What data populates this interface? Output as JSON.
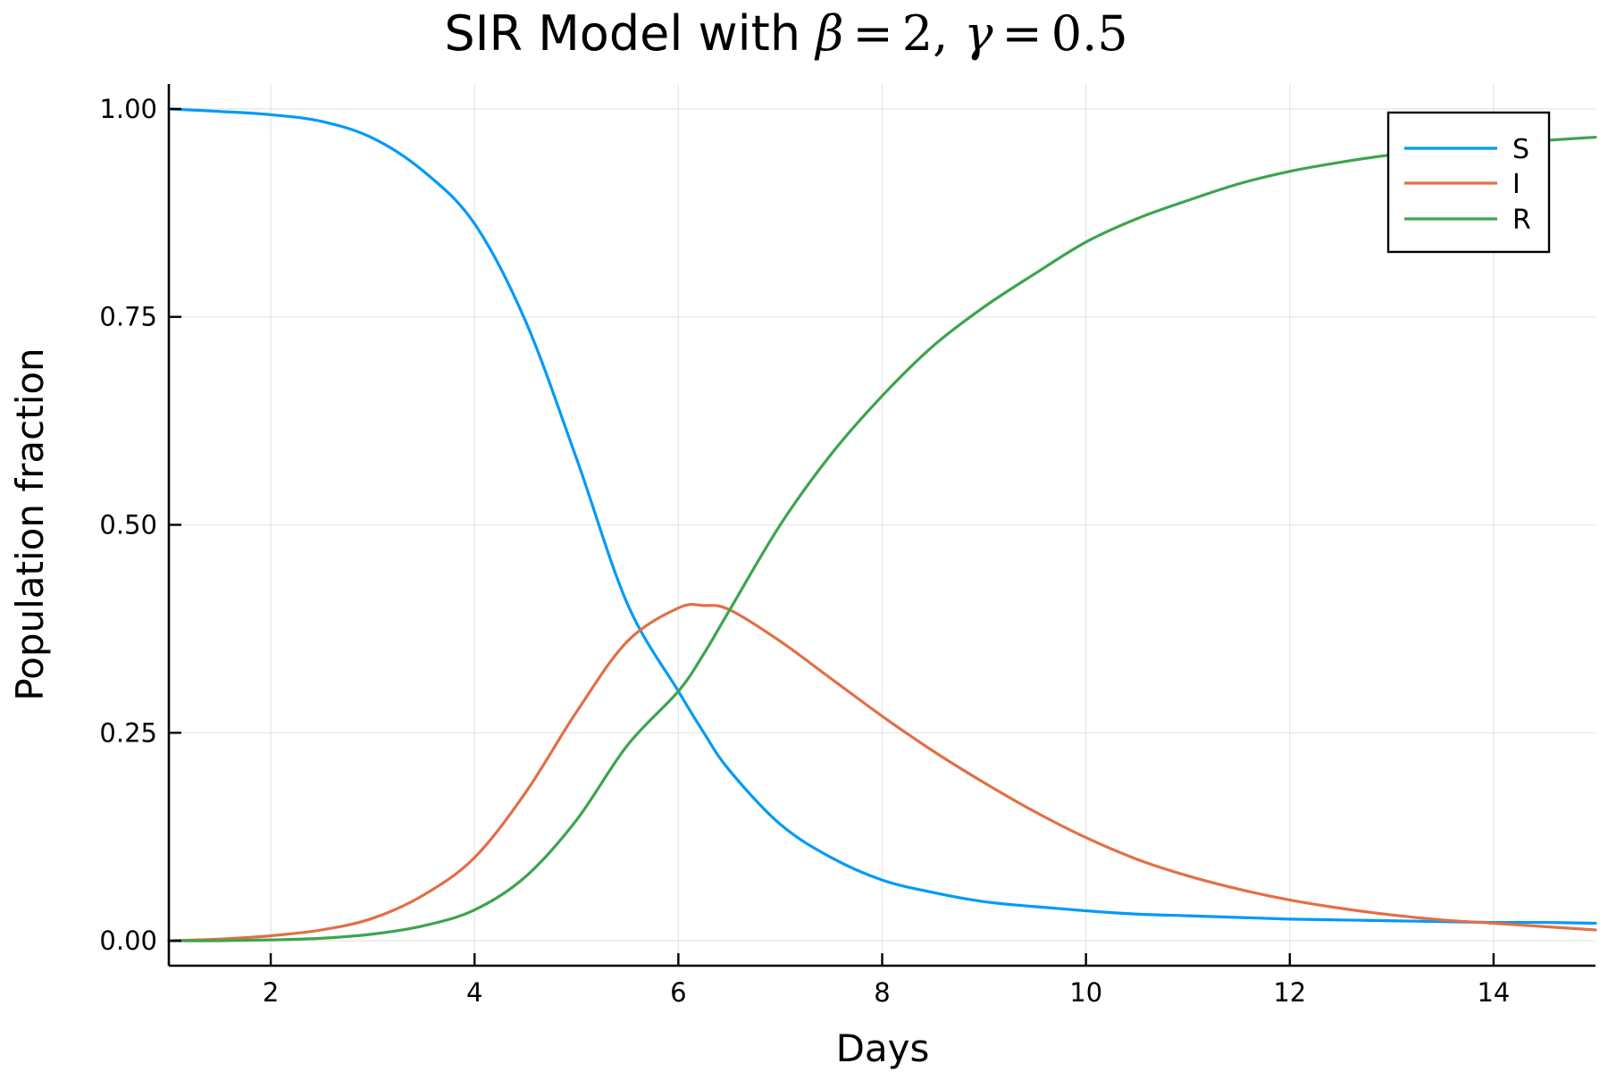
{
  "chart_data": {
    "type": "line",
    "title": {
      "prefix": "SIR Model with ",
      "beta_symbol": "β",
      "beta_value": "2",
      "separator": ",",
      "gamma_symbol": "γ",
      "gamma_value": "0.5",
      "equals": "="
    },
    "xlabel": "Days",
    "ylabel": "Population fraction",
    "xlim": [
      1,
      15
    ],
    "ylim": [
      -0.03,
      1.03
    ],
    "xticks": [
      2,
      4,
      6,
      8,
      10,
      12,
      14
    ],
    "xtick_labels": [
      "2",
      "4",
      "6",
      "8",
      "10",
      "12",
      "14"
    ],
    "yticks": [
      0,
      0.25,
      0.5,
      0.75,
      1.0
    ],
    "ytick_labels": [
      "0.00",
      "0.25",
      "0.50",
      "0.75",
      "1.00"
    ],
    "grid": true,
    "legend_position": "top-right",
    "x": [
      1,
      1.5,
      2,
      2.5,
      3,
      3.5,
      4,
      4.5,
      5,
      5.5,
      6,
      6.25,
      6.5,
      7,
      7.5,
      8,
      8.5,
      9,
      9.5,
      10,
      10.5,
      11,
      11.5,
      12,
      12.5,
      13,
      13.5,
      14,
      14.5,
      15
    ],
    "series": [
      {
        "name": "S",
        "color": "#009af9",
        "values": [
          1.0,
          0.997,
          0.993,
          0.985,
          0.965,
          0.925,
          0.862,
          0.745,
          0.58,
          0.405,
          0.3,
          0.25,
          0.205,
          0.14,
          0.1,
          0.073,
          0.058,
          0.047,
          0.041,
          0.036,
          0.032,
          0.03,
          0.028,
          0.026,
          0.025,
          0.024,
          0.023,
          0.022,
          0.022,
          0.021
        ]
      },
      {
        "name": "I",
        "color": "#e26f46",
        "values": [
          0.0,
          0.002,
          0.006,
          0.013,
          0.027,
          0.055,
          0.1,
          0.178,
          0.275,
          0.36,
          0.4,
          0.403,
          0.398,
          0.36,
          0.315,
          0.27,
          0.228,
          0.19,
          0.155,
          0.124,
          0.098,
          0.078,
          0.062,
          0.049,
          0.039,
          0.031,
          0.025,
          0.021,
          0.017,
          0.013
        ]
      },
      {
        "name": "R",
        "color": "#3da44d",
        "values": [
          0.0,
          0.0,
          0.001,
          0.003,
          0.008,
          0.018,
          0.037,
          0.077,
          0.145,
          0.235,
          0.3,
          0.345,
          0.397,
          0.5,
          0.585,
          0.655,
          0.715,
          0.762,
          0.802,
          0.84,
          0.868,
          0.89,
          0.91,
          0.925,
          0.936,
          0.945,
          0.952,
          0.957,
          0.962,
          0.966
        ]
      }
    ]
  }
}
